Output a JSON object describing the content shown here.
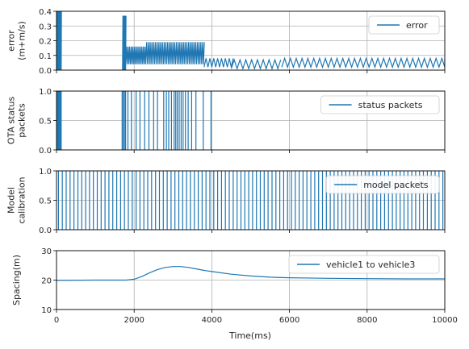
{
  "figure": {
    "xlabel": "Time(ms)",
    "series_color": "#1f77b4",
    "grid_color": "#b0b0b0"
  },
  "chart_data": [
    {
      "type": "line",
      "ylabel_lines": [
        "error",
        "(m+m/s)"
      ],
      "xlim": [
        0,
        10000
      ],
      "ylim": [
        0,
        0.4
      ],
      "yticks": [
        0.0,
        0.1,
        0.2,
        0.3,
        0.4
      ],
      "ytick_labels": [
        "0.0",
        "0.1",
        "0.2",
        "0.3",
        "0.4"
      ],
      "xticks": [
        0,
        2000,
        4000,
        6000,
        8000,
        10000
      ],
      "xtick_labels_visible": false,
      "grid": true,
      "legend_position": "top-right",
      "series": [
        {
          "name": "error",
          "segments": [
            {
              "x_start": 0,
              "x_end": 120,
              "period_ms": 12,
              "peak": 0.4,
              "base": 0.0
            },
            {
              "x_start": 1700,
              "x_end": 1780,
              "period_ms": 20,
              "peak": 0.37,
              "base": 0.0
            },
            {
              "x_start": 1780,
              "x_end": 2300,
              "period_ms": 40,
              "peak": 0.16,
              "base": 0.04
            },
            {
              "x_start": 2300,
              "x_end": 3800,
              "period_ms": 45,
              "peak": 0.19,
              "base": 0.04
            },
            {
              "x_start": 3800,
              "x_end": 4500,
              "period_ms": 100,
              "peak": 0.08,
              "base": 0.02
            },
            {
              "x_start": 4500,
              "x_end": 5800,
              "period_ms": 150,
              "peak": 0.07,
              "base": 0.01
            },
            {
              "x_start": 5800,
              "x_end": 10000,
              "period_ms": 150,
              "peak": 0.08,
              "base": 0.02
            }
          ]
        }
      ]
    },
    {
      "type": "line",
      "ylabel_lines": [
        "OTA status",
        "packets"
      ],
      "xlim": [
        0,
        10000
      ],
      "ylim": [
        0,
        1
      ],
      "yticks": [
        0.0,
        0.5,
        1.0
      ],
      "ytick_labels": [
        "0.0",
        "0.5",
        "1.0"
      ],
      "xticks": [
        0,
        2000,
        4000,
        6000,
        8000,
        10000
      ],
      "xtick_labels_visible": false,
      "grid": true,
      "legend_position": "top-right",
      "series": [
        {
          "name": "status packets",
          "pulse_times_ms": [
            20,
            45,
            70,
            95,
            120,
            1690,
            1720,
            1750,
            1780,
            1840,
            1930,
            2050,
            2150,
            2270,
            2380,
            2500,
            2600,
            2760,
            2830,
            2890,
            2960,
            3030,
            3070,
            3110,
            3160,
            3210,
            3260,
            3320,
            3390,
            3480,
            3590,
            3780,
            3980
          ],
          "pulse_value": 1.0
        }
      ]
    },
    {
      "type": "line",
      "ylabel_lines": [
        "Model",
        "calibration"
      ],
      "xlim": [
        0,
        10000
      ],
      "ylim": [
        0,
        1
      ],
      "yticks": [
        0.0,
        0.5,
        1.0
      ],
      "ytick_labels": [
        "0.0",
        "0.5",
        "1.0"
      ],
      "xticks": [
        0,
        2000,
        4000,
        6000,
        8000,
        10000
      ],
      "xtick_labels_visible": false,
      "grid": true,
      "legend_position": "top-right",
      "series": [
        {
          "name": "model packets",
          "pulse_start_ms": 50,
          "pulse_period_ms": 100,
          "pulse_end_ms": 10000,
          "pulse_value": 1.0
        }
      ]
    },
    {
      "type": "line",
      "ylabel_lines": [
        "Spacing(m)"
      ],
      "xlim": [
        0,
        10000
      ],
      "ylim": [
        10,
        30
      ],
      "yticks": [
        10,
        20,
        30
      ],
      "ytick_labels": [
        "10",
        "20",
        "30"
      ],
      "xticks": [
        0,
        2000,
        4000,
        6000,
        8000,
        10000
      ],
      "xtick_labels": [
        "0",
        "2000",
        "4000",
        "6000",
        "8000",
        "10000"
      ],
      "xtick_labels_visible": true,
      "grid": true,
      "legend_position": "top-right",
      "series": [
        {
          "name": "vehicle1 to vehicle3",
          "x": [
            0,
            1000,
            1800,
            2000,
            2200,
            2400,
            2600,
            2800,
            3000,
            3200,
            3400,
            3600,
            3800,
            4000,
            4500,
            5000,
            5500,
            6000,
            7000,
            8000,
            9000,
            10000
          ],
          "y": [
            19.9,
            20.0,
            20.0,
            20.3,
            21.2,
            22.5,
            23.6,
            24.3,
            24.6,
            24.6,
            24.3,
            23.8,
            23.3,
            22.9,
            22.0,
            21.4,
            21.0,
            20.8,
            20.6,
            20.5,
            20.4,
            20.4
          ]
        }
      ]
    }
  ]
}
